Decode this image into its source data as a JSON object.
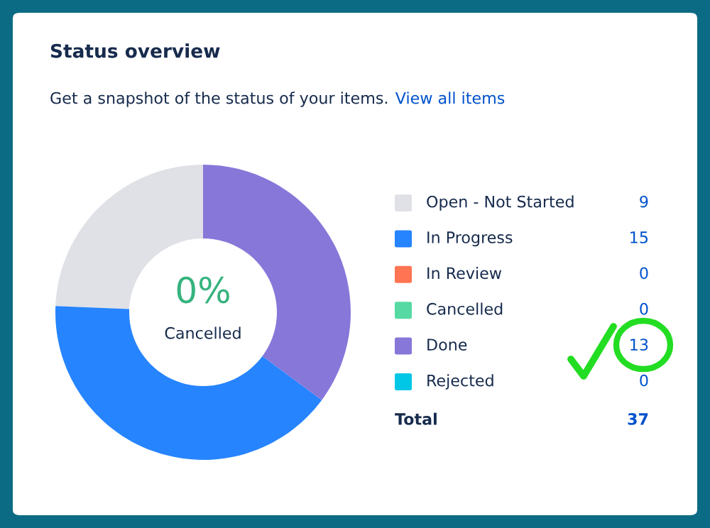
{
  "chart_data": {
    "type": "donut",
    "title": "Status overview",
    "subtitle": "Get a snapshot of the status of your items.",
    "categories": [
      "Open - Not Started",
      "In Progress",
      "In Review",
      "Cancelled",
      "Done",
      "Rejected"
    ],
    "values": [
      9,
      15,
      0,
      0,
      13,
      0
    ],
    "colors": [
      "#dfe1e6",
      "#2684ff",
      "#ff7452",
      "#57d9a3",
      "#8777d9",
      "#00c7e6"
    ],
    "value_labels": [
      "9",
      "15",
      "0",
      "0",
      "13",
      "0"
    ],
    "legend": "right",
    "totals": [
      "37"
    ],
    "annotations": [
      "View all items",
      "0%",
      "Cancelled",
      "Total"
    ]
  }
}
